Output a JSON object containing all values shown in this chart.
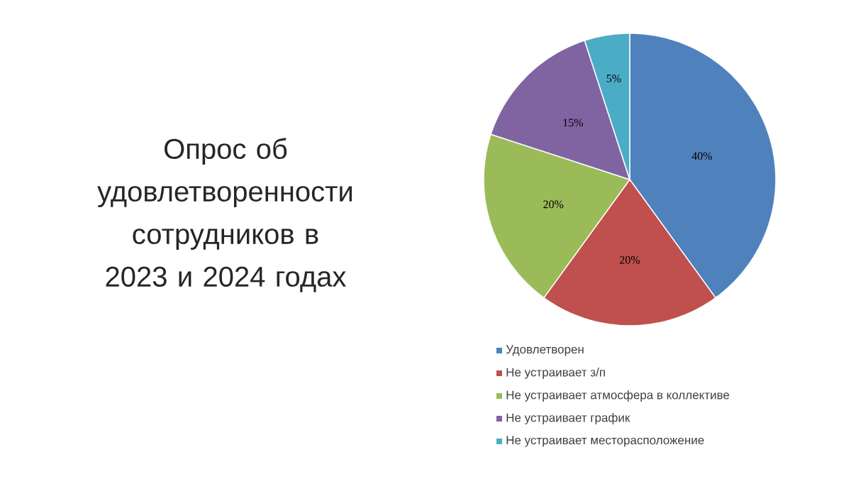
{
  "chart_data": {
    "type": "pie",
    "title": "Опрос об удовлетворенности сотрудников в 2023 и 2024 годах",
    "categories": [
      "Удовлетворен",
      "Не устраивает з/п",
      "Не устраивает атмосфера в коллективе",
      "Не устраивает график",
      "Не устраивает месторасположение"
    ],
    "values": [
      40,
      20,
      20,
      15,
      5
    ],
    "value_labels": [
      "40%",
      "20%",
      "20%",
      "15%",
      "5%"
    ],
    "colors": [
      "#4f81bd",
      "#c0504d",
      "#9bbb59",
      "#8064a2",
      "#4bacc6"
    ],
    "legend": "bottom"
  }
}
